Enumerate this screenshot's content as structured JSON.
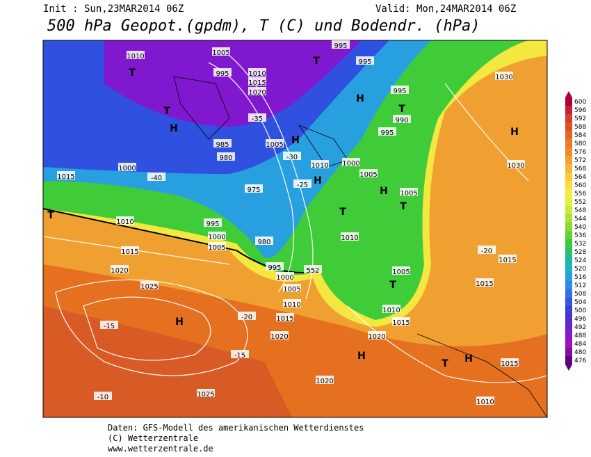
{
  "header": {
    "init": "Init : Sun,23MAR2014 06Z",
    "valid": "Valid: Mon,24MAR2014 06Z",
    "title": "500 hPa Geopot.(gpdm), T (C) und Bodendr. (hPa)"
  },
  "legend": {
    "values": [
      600,
      596,
      592,
      588,
      584,
      580,
      576,
      572,
      568,
      564,
      560,
      556,
      552,
      548,
      544,
      540,
      536,
      532,
      528,
      524,
      520,
      516,
      512,
      508,
      504,
      500,
      496,
      492,
      488,
      484,
      480,
      476
    ],
    "colors": [
      "#b0003c",
      "#c81e3c",
      "#d83c28",
      "#e05020",
      "#e86420",
      "#ec7828",
      "#f08c28",
      "#f4a030",
      "#f8b438",
      "#fcc83c",
      "#fcdc40",
      "#f4ec40",
      "#e4f03c",
      "#c8ec38",
      "#a8e430",
      "#88dc30",
      "#60d430",
      "#38cc38",
      "#28c070",
      "#20b8a0",
      "#20b0c8",
      "#28a0e0",
      "#3088e8",
      "#3070e8",
      "#3058e0",
      "#3840d8",
      "#5030d0",
      "#7020d0",
      "#8818c8",
      "#a010c0",
      "#8010a0",
      "#600080"
    ]
  },
  "map_labels": [
    "1010",
    "T",
    "1005",
    "995",
    "1010",
    "1015",
    "1020",
    "995",
    "995",
    "T",
    "H",
    "995",
    "T",
    "990",
    "995",
    "1030",
    "H",
    "1030",
    "H",
    "T",
    "985",
    "980",
    "1005",
    "H",
    "1010",
    "1000",
    "1005",
    "H",
    "H",
    "1005",
    "T",
    "975",
    "1015",
    "1000",
    "T",
    "1010",
    "995",
    "1000",
    "1005",
    "980",
    "T",
    "1010",
    "995",
    "552",
    "1000",
    "1005",
    "1010",
    "1015",
    "1005",
    "T",
    "1010",
    "1015",
    "1015",
    "1020",
    "1025",
    "H",
    "1020",
    "1020",
    "H",
    "T",
    "H",
    "1015",
    "1015",
    "1015",
    "1020",
    "1025",
    "1010",
    "-15",
    "-10",
    "-35",
    "-40",
    "-30",
    "-25",
    "-20",
    "-20",
    "-15"
  ],
  "footer": [
    "Daten: GFS-Modell des amerikanischen Wetterdienstes",
    "(C) Wetterzentrale",
    "www.wetterzentrale.de"
  ]
}
